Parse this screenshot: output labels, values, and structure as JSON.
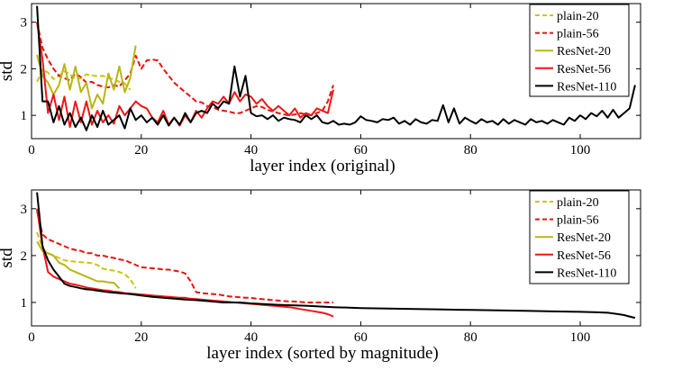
{
  "chart_data": [
    {
      "type": "line",
      "title": "",
      "xlabel": "layer index (original)",
      "ylabel": "std",
      "xlim": [
        0,
        111
      ],
      "ylim": [
        0.5,
        3.4
      ],
      "xticks": [
        0,
        20,
        40,
        60,
        80,
        100
      ],
      "yticks": [
        1,
        2,
        3
      ],
      "legend_position": "top-right",
      "series": [
        {
          "name": "plain-20",
          "color": "#c9c610",
          "dash": "dashed",
          "x": [
            1,
            2,
            3,
            4,
            5,
            6,
            7,
            8,
            9,
            10,
            11,
            12,
            13,
            14,
            15,
            16,
            17,
            18
          ],
          "y": [
            1.72,
            1.98,
            1.92,
            1.78,
            1.85,
            1.95,
            1.88,
            1.78,
            1.8,
            1.88,
            1.86,
            1.84,
            1.85,
            1.8,
            1.78,
            1.72,
            1.68,
            1.55
          ]
        },
        {
          "name": "plain-56",
          "color": "#e8140f",
          "dash": "dashed",
          "x": [
            1,
            2,
            3,
            4,
            5,
            6,
            7,
            8,
            9,
            10,
            11,
            12,
            13,
            14,
            15,
            16,
            17,
            18,
            19,
            20,
            21,
            22,
            23,
            24,
            25,
            26,
            27,
            28,
            29,
            30,
            31,
            32,
            33,
            34,
            35,
            36,
            37,
            38,
            39,
            40,
            41,
            42,
            43,
            44,
            45,
            46,
            47,
            48,
            49,
            50,
            51,
            52,
            53,
            54,
            55
          ],
          "y": [
            3.0,
            2.45,
            2.2,
            2.0,
            1.85,
            1.8,
            1.75,
            1.9,
            1.82,
            1.7,
            1.72,
            1.65,
            1.62,
            1.6,
            1.65,
            1.62,
            1.75,
            1.9,
            2.28,
            2.0,
            2.18,
            2.2,
            2.18,
            2.0,
            1.85,
            1.7,
            1.6,
            1.5,
            1.4,
            1.3,
            1.28,
            1.2,
            1.18,
            1.12,
            1.1,
            1.08,
            1.05,
            1.05,
            1.1,
            1.15,
            1.2,
            1.18,
            1.12,
            1.08,
            1.05,
            1.02,
            1.0,
            1.02,
            1.05,
            1.02,
            1.0,
            1.05,
            1.1,
            1.3,
            1.65
          ]
        },
        {
          "name": "ResNet-20",
          "color": "#b8b614",
          "dash": "solid",
          "x": [
            1,
            2,
            3,
            4,
            5,
            6,
            7,
            8,
            9,
            10,
            11,
            12,
            13,
            14,
            15,
            16,
            17,
            18,
            19
          ],
          "y": [
            2.3,
            1.85,
            1.7,
            1.45,
            1.65,
            2.1,
            1.55,
            2.05,
            1.5,
            1.7,
            1.15,
            1.45,
            1.25,
            1.9,
            1.55,
            2.05,
            1.5,
            1.8,
            2.5
          ]
        },
        {
          "name": "ResNet-56",
          "color": "#f01515",
          "dash": "solid",
          "x": [
            1,
            2,
            3,
            4,
            5,
            6,
            7,
            8,
            9,
            10,
            11,
            12,
            13,
            14,
            15,
            16,
            17,
            18,
            19,
            20,
            21,
            22,
            23,
            24,
            25,
            26,
            27,
            28,
            29,
            30,
            31,
            32,
            33,
            34,
            35,
            36,
            37,
            38,
            39,
            40,
            41,
            42,
            43,
            44,
            45,
            46,
            47,
            48,
            49,
            50,
            51,
            52,
            53,
            54,
            55
          ],
          "y": [
            3.0,
            2.2,
            1.05,
            1.45,
            0.9,
            1.4,
            0.75,
            1.3,
            0.85,
            1.3,
            0.8,
            1.1,
            0.85,
            1.0,
            0.82,
            1.2,
            1.0,
            1.15,
            1.3,
            1.2,
            1.15,
            0.95,
            0.85,
            1.1,
            0.8,
            0.95,
            0.78,
            1.0,
            0.85,
            1.1,
            0.95,
            1.15,
            1.3,
            1.25,
            1.4,
            1.25,
            1.5,
            1.3,
            1.45,
            1.4,
            1.25,
            1.35,
            1.2,
            1.1,
            1.2,
            1.1,
            1.0,
            1.15,
            0.95,
            1.05,
            1.0,
            1.15,
            1.1,
            1.05,
            1.55
          ]
        },
        {
          "name": "ResNet-110",
          "color": "#000000",
          "dash": "solid",
          "x": [
            1,
            2,
            3,
            4,
            5,
            6,
            7,
            8,
            9,
            10,
            11,
            12,
            13,
            14,
            15,
            16,
            17,
            18,
            19,
            20,
            21,
            22,
            23,
            24,
            25,
            26,
            27,
            28,
            29,
            30,
            31,
            32,
            33,
            34,
            35,
            36,
            37,
            38,
            39,
            40,
            41,
            42,
            43,
            44,
            45,
            46,
            47,
            48,
            49,
            50,
            51,
            52,
            53,
            54,
            55,
            56,
            57,
            58,
            59,
            60,
            61,
            62,
            63,
            64,
            65,
            66,
            67,
            68,
            69,
            70,
            71,
            72,
            73,
            74,
            75,
            76,
            77,
            78,
            79,
            80,
            81,
            82,
            83,
            84,
            85,
            86,
            87,
            88,
            89,
            90,
            91,
            92,
            93,
            94,
            95,
            96,
            97,
            98,
            99,
            100,
            101,
            102,
            103,
            104,
            105,
            106,
            107,
            108,
            109,
            110
          ],
          "y": [
            3.35,
            1.3,
            1.3,
            0.85,
            1.2,
            0.8,
            1.05,
            0.75,
            0.95,
            0.68,
            1.0,
            0.75,
            1.1,
            0.8,
            0.9,
            1.0,
            0.72,
            1.15,
            0.9,
            1.0,
            0.85,
            0.95,
            0.8,
            1.0,
            0.78,
            0.95,
            0.8,
            1.05,
            0.85,
            1.05,
            1.1,
            1.05,
            1.25,
            1.15,
            1.3,
            1.25,
            2.05,
            1.4,
            1.85,
            1.05,
            0.98,
            1.0,
            0.92,
            1.0,
            0.88,
            0.95,
            0.92,
            0.9,
            0.85,
            1.0,
            0.92,
            1.0,
            0.85,
            0.82,
            0.88,
            0.8,
            0.82,
            0.8,
            0.85,
            0.98,
            0.9,
            0.88,
            0.85,
            0.92,
            0.9,
            0.95,
            0.82,
            0.88,
            0.8,
            0.92,
            0.85,
            0.82,
            0.9,
            0.88,
            1.22,
            0.85,
            1.15,
            0.82,
            0.95,
            0.88,
            0.82,
            0.92,
            0.85,
            0.88,
            0.8,
            0.92,
            0.82,
            0.9,
            0.85,
            0.8,
            0.92,
            0.85,
            0.88,
            0.82,
            0.9,
            0.85,
            0.8,
            0.95,
            0.88,
            1.0,
            0.92,
            1.05,
            0.98,
            1.1,
            0.95,
            1.12,
            0.95,
            1.05,
            1.15,
            1.65
          ]
        }
      ]
    },
    {
      "type": "line",
      "title": "",
      "xlabel": "layer index (sorted by magnitude)",
      "ylabel": "std",
      "xlim": [
        0,
        111
      ],
      "ylim": [
        0.5,
        3.4
      ],
      "xticks": [
        0,
        20,
        40,
        60,
        80,
        100
      ],
      "yticks": [
        1,
        2,
        3
      ],
      "legend_position": "top-right",
      "series": [
        {
          "name": "plain-20",
          "color": "#c9c610",
          "dash": "dashed",
          "x": [
            1,
            2,
            3,
            4,
            5,
            6,
            7,
            8,
            9,
            10,
            11,
            12,
            13,
            14,
            15,
            16,
            17,
            18,
            19
          ],
          "y": [
            2.5,
            2.15,
            2.05,
            2.0,
            1.95,
            1.9,
            1.88,
            1.87,
            1.86,
            1.85,
            1.84,
            1.8,
            1.72,
            1.7,
            1.68,
            1.65,
            1.6,
            1.5,
            1.3
          ]
        },
        {
          "name": "plain-56",
          "color": "#e8140f",
          "dash": "dashed",
          "x": [
            1,
            2,
            3,
            4,
            5,
            6,
            7,
            8,
            9,
            10,
            11,
            12,
            13,
            14,
            15,
            16,
            17,
            18,
            19,
            20,
            21,
            22,
            23,
            24,
            25,
            26,
            27,
            28,
            29,
            30,
            31,
            32,
            33,
            34,
            35,
            36,
            37,
            38,
            39,
            40,
            41,
            42,
            43,
            44,
            45,
            46,
            47,
            48,
            49,
            50,
            51,
            52,
            53,
            54,
            55
          ],
          "y": [
            2.95,
            2.45,
            2.35,
            2.3,
            2.25,
            2.2,
            2.15,
            2.12,
            2.1,
            2.05,
            2.05,
            2.0,
            2.0,
            1.97,
            1.95,
            1.92,
            1.9,
            1.85,
            1.8,
            1.75,
            1.74,
            1.73,
            1.72,
            1.7,
            1.7,
            1.68,
            1.66,
            1.62,
            1.45,
            1.22,
            1.2,
            1.19,
            1.18,
            1.17,
            1.15,
            1.13,
            1.12,
            1.11,
            1.1,
            1.1,
            1.08,
            1.07,
            1.06,
            1.05,
            1.04,
            1.03,
            1.02,
            1.02,
            1.01,
            1.0,
            1.0,
            1.0,
            1.0,
            1.0,
            1.0
          ]
        },
        {
          "name": "ResNet-20",
          "color": "#b8b614",
          "dash": "solid",
          "x": [
            1,
            2,
            3,
            4,
            5,
            6,
            7,
            8,
            9,
            10,
            11,
            12,
            13,
            14,
            15,
            16
          ],
          "y": [
            2.3,
            2.1,
            2.05,
            2.0,
            1.85,
            1.8,
            1.7,
            1.65,
            1.6,
            1.55,
            1.5,
            1.45,
            1.45,
            1.43,
            1.42,
            1.3
          ]
        },
        {
          "name": "ResNet-56",
          "color": "#f01515",
          "dash": "solid",
          "x": [
            1,
            2,
            3,
            4,
            5,
            6,
            7,
            8,
            9,
            10,
            11,
            12,
            13,
            14,
            15,
            16,
            17,
            18,
            19,
            20,
            21,
            22,
            23,
            24,
            25,
            26,
            27,
            28,
            29,
            30,
            31,
            32,
            33,
            34,
            35,
            36,
            37,
            38,
            39,
            40,
            41,
            42,
            43,
            44,
            45,
            46,
            47,
            48,
            49,
            50,
            51,
            52,
            53,
            54,
            55
          ],
          "y": [
            3.0,
            2.2,
            1.65,
            1.55,
            1.5,
            1.45,
            1.4,
            1.38,
            1.35,
            1.32,
            1.3,
            1.28,
            1.26,
            1.25,
            1.23,
            1.22,
            1.2,
            1.19,
            1.18,
            1.17,
            1.16,
            1.15,
            1.14,
            1.13,
            1.12,
            1.11,
            1.1,
            1.1,
            1.08,
            1.07,
            1.06,
            1.05,
            1.04,
            1.03,
            1.02,
            1.01,
            1.0,
            0.99,
            0.98,
            0.97,
            0.96,
            0.95,
            0.94,
            0.93,
            0.92,
            0.91,
            0.9,
            0.88,
            0.86,
            0.84,
            0.82,
            0.8,
            0.78,
            0.75,
            0.7
          ]
        },
        {
          "name": "ResNet-110",
          "color": "#000000",
          "dash": "solid",
          "x": [
            1,
            2,
            3,
            4,
            5,
            6,
            7,
            8,
            9,
            10,
            11,
            12,
            14,
            16,
            18,
            20,
            22,
            24,
            26,
            28,
            30,
            32,
            35,
            38,
            40,
            45,
            50,
            55,
            60,
            65,
            70,
            75,
            80,
            85,
            90,
            95,
            100,
            103,
            105,
            107,
            108,
            109,
            110
          ],
          "y": [
            3.35,
            2.2,
            1.9,
            1.7,
            1.55,
            1.4,
            1.35,
            1.33,
            1.3,
            1.28,
            1.27,
            1.25,
            1.22,
            1.2,
            1.18,
            1.15,
            1.12,
            1.1,
            1.08,
            1.06,
            1.05,
            1.03,
            1.0,
            1.0,
            0.98,
            0.95,
            0.93,
            0.9,
            0.88,
            0.87,
            0.86,
            0.85,
            0.84,
            0.83,
            0.82,
            0.81,
            0.8,
            0.79,
            0.78,
            0.75,
            0.73,
            0.7,
            0.67
          ]
        }
      ]
    }
  ]
}
